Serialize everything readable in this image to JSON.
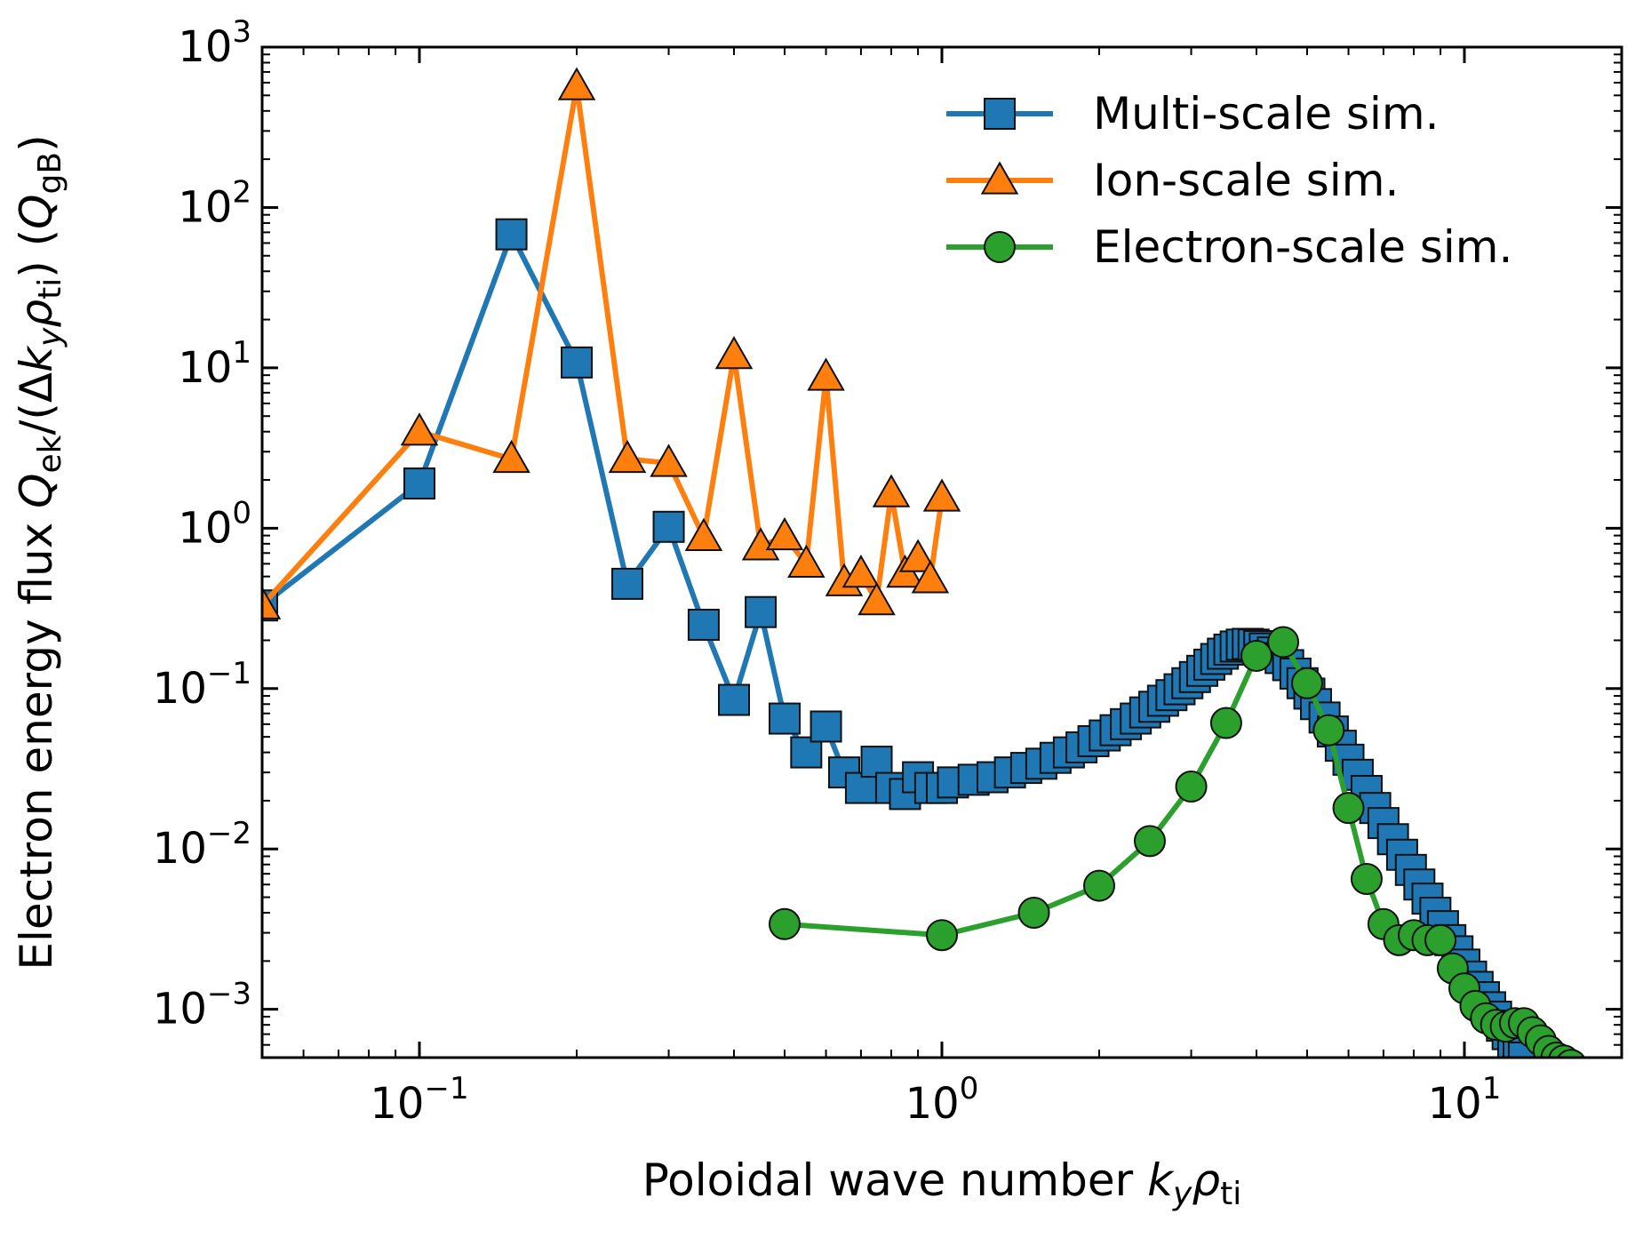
{
  "chart_data": {
    "type": "line",
    "xscale": "log",
    "yscale": "log",
    "xlim": [
      0.05,
      20
    ],
    "ylim": [
      0.0005,
      1000
    ],
    "xlabel": {
      "main": "Poloidal wave number ",
      "k": "k",
      "ksub": "y",
      "rho": "ρ",
      "rhosub": "ti"
    },
    "ylabel": {
      "main": "Electron energy flux ",
      "Q": "Q",
      "Qsub": "ek",
      "mid": "/(Δ",
      "k": "k",
      "ksub": "y",
      "rho": "ρ",
      "rhosub": "ti",
      "close": ") (",
      "Q2": "Q",
      "Q2sub": "gB",
      "end": ")"
    },
    "xticks": [
      {
        "value": 0.1,
        "base": "10",
        "exp": "−1"
      },
      {
        "value": 1,
        "base": "10",
        "exp": "0"
      },
      {
        "value": 10,
        "base": "10",
        "exp": "1"
      }
    ],
    "yticks": [
      {
        "value": 0.001,
        "base": "10",
        "exp": "−3"
      },
      {
        "value": 0.01,
        "base": "10",
        "exp": "−2"
      },
      {
        "value": 0.1,
        "base": "10",
        "exp": "−1"
      },
      {
        "value": 1,
        "base": "10",
        "exp": "0"
      },
      {
        "value": 10,
        "base": "10",
        "exp": "1"
      },
      {
        "value": 100,
        "base": "10",
        "exp": "2"
      },
      {
        "value": 1000,
        "base": "10",
        "exp": "3"
      }
    ],
    "legend_position": "top-right",
    "series": [
      {
        "name": "Multi-scale sim.",
        "color": "#1f77b4",
        "marker": "square",
        "points": [
          [
            0.05,
            0.33
          ],
          [
            0.1,
            1.9
          ],
          [
            0.15,
            68
          ],
          [
            0.2,
            10.8
          ],
          [
            0.25,
            0.45
          ],
          [
            0.3,
            1.02
          ],
          [
            0.35,
            0.25
          ],
          [
            0.4,
            0.085
          ],
          [
            0.45,
            0.3
          ],
          [
            0.5,
            0.065
          ],
          [
            0.55,
            0.04
          ],
          [
            0.6,
            0.058
          ],
          [
            0.65,
            0.03
          ],
          [
            0.7,
            0.024
          ],
          [
            0.75,
            0.035
          ],
          [
            0.8,
            0.024
          ],
          [
            0.85,
            0.022
          ],
          [
            0.9,
            0.028
          ],
          [
            0.95,
            0.024
          ],
          [
            1.0,
            0.024
          ],
          [
            1.05,
            0.026
          ],
          [
            1.15,
            0.027
          ],
          [
            1.25,
            0.028
          ],
          [
            1.35,
            0.03
          ],
          [
            1.45,
            0.032
          ],
          [
            1.55,
            0.034
          ],
          [
            1.65,
            0.037
          ],
          [
            1.75,
            0.04
          ],
          [
            1.85,
            0.043
          ],
          [
            1.95,
            0.047
          ],
          [
            2.05,
            0.051
          ],
          [
            2.15,
            0.055
          ],
          [
            2.25,
            0.06
          ],
          [
            2.35,
            0.065
          ],
          [
            2.45,
            0.071
          ],
          [
            2.55,
            0.077
          ],
          [
            2.65,
            0.084
          ],
          [
            2.75,
            0.091
          ],
          [
            2.85,
            0.099
          ],
          [
            2.95,
            0.108
          ],
          [
            3.05,
            0.118
          ],
          [
            3.15,
            0.129
          ],
          [
            3.25,
            0.141
          ],
          [
            3.35,
            0.153
          ],
          [
            3.45,
            0.165
          ],
          [
            3.55,
            0.175
          ],
          [
            3.65,
            0.183
          ],
          [
            3.75,
            0.188
          ],
          [
            3.85,
            0.19
          ],
          [
            3.95,
            0.188
          ],
          [
            4.05,
            0.184
          ],
          [
            4.15,
            0.178
          ],
          [
            4.3,
            0.168
          ],
          [
            4.45,
            0.155
          ],
          [
            4.6,
            0.14
          ],
          [
            4.75,
            0.124
          ],
          [
            4.9,
            0.108
          ],
          [
            5.05,
            0.093
          ],
          [
            5.2,
            0.08
          ],
          [
            5.4,
            0.066
          ],
          [
            5.6,
            0.054
          ],
          [
            5.8,
            0.044
          ],
          [
            6.0,
            0.036
          ],
          [
            6.25,
            0.029
          ],
          [
            6.5,
            0.023
          ],
          [
            6.75,
            0.018
          ],
          [
            7.0,
            0.0145
          ],
          [
            7.3,
            0.0115
          ],
          [
            7.6,
            0.0092
          ],
          [
            7.9,
            0.0074
          ],
          [
            8.2,
            0.006
          ],
          [
            8.5,
            0.0049
          ],
          [
            8.8,
            0.004
          ],
          [
            9.1,
            0.0033
          ],
          [
            9.4,
            0.0027
          ],
          [
            9.7,
            0.0023
          ],
          [
            10.0,
            0.0019
          ],
          [
            10.3,
            0.0016
          ],
          [
            10.6,
            0.00138
          ],
          [
            10.9,
            0.00119
          ],
          [
            11.2,
            0.00103
          ],
          [
            11.5,
            0.0009
          ],
          [
            11.8,
            0.00079
          ],
          [
            12.1,
            0.0007
          ],
          [
            12.4,
            0.00062
          ],
          [
            12.7,
            0.00055
          ],
          [
            13.0,
            0.0005
          ]
        ]
      },
      {
        "name": "Ion-scale sim.",
        "color": "#ff7f0e",
        "marker": "triangle",
        "points": [
          [
            0.05,
            0.33
          ],
          [
            0.1,
            4.0
          ],
          [
            0.15,
            2.7
          ],
          [
            0.2,
            570
          ],
          [
            0.25,
            2.7
          ],
          [
            0.3,
            2.55
          ],
          [
            0.35,
            0.88
          ],
          [
            0.4,
            12.0
          ],
          [
            0.45,
            0.77
          ],
          [
            0.5,
            0.89
          ],
          [
            0.55,
            0.6
          ],
          [
            0.6,
            8.8
          ],
          [
            0.65,
            0.46
          ],
          [
            0.7,
            0.52
          ],
          [
            0.75,
            0.35
          ],
          [
            0.8,
            1.65
          ],
          [
            0.85,
            0.52
          ],
          [
            0.9,
            0.65
          ],
          [
            0.95,
            0.48
          ],
          [
            1.0,
            1.55
          ]
        ]
      },
      {
        "name": "Electron-scale sim.",
        "color": "#2ca02c",
        "marker": "circle",
        "points": [
          [
            0.5,
            0.0034
          ],
          [
            1.0,
            0.0029
          ],
          [
            1.5,
            0.004
          ],
          [
            2.0,
            0.0059
          ],
          [
            2.5,
            0.0112
          ],
          [
            3.0,
            0.0245
          ],
          [
            3.5,
            0.061
          ],
          [
            4.0,
            0.16
          ],
          [
            4.5,
            0.195
          ],
          [
            5.0,
            0.108
          ],
          [
            5.5,
            0.055
          ],
          [
            6.0,
            0.018
          ],
          [
            6.5,
            0.0065
          ],
          [
            7.0,
            0.0034
          ],
          [
            7.5,
            0.0027
          ],
          [
            8.0,
            0.0029
          ],
          [
            8.5,
            0.0027
          ],
          [
            9.0,
            0.0027
          ],
          [
            9.5,
            0.0018
          ],
          [
            10.0,
            0.00135
          ],
          [
            10.5,
            0.00105
          ],
          [
            11.0,
            0.00088
          ],
          [
            11.5,
            0.0008
          ],
          [
            12.0,
            0.00078
          ],
          [
            12.5,
            0.00082
          ],
          [
            13.0,
            0.00082
          ],
          [
            13.5,
            0.00072
          ],
          [
            14.0,
            0.00064
          ],
          [
            14.5,
            0.00055
          ],
          [
            15.0,
            0.0005
          ],
          [
            15.5,
            0.00048
          ],
          [
            16.0,
            0.00045
          ]
        ]
      }
    ]
  }
}
